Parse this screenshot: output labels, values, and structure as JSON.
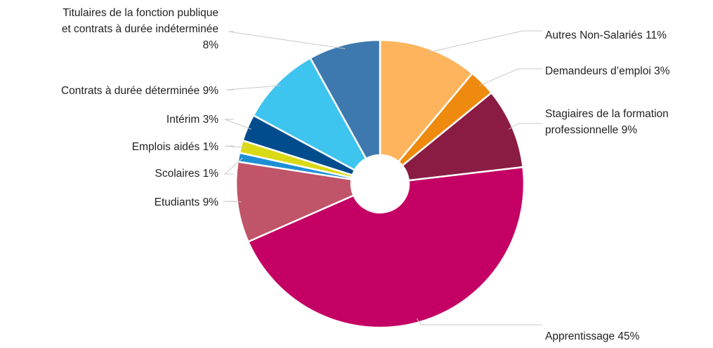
{
  "chart_data": {
    "type": "pie",
    "donut": true,
    "title": "",
    "slices": [
      {
        "label_lines": [
          "Autres Non-Salariés 11%"
        ],
        "value": 11,
        "color": "#FDB45C"
      },
      {
        "label_lines": [
          "Demandeurs d’emploi 3%"
        ],
        "value": 3,
        "color": "#EE8A0E"
      },
      {
        "label_lines": [
          "Stagiaires de la formation",
          "professionnelle 9%"
        ],
        "value": 9,
        "color": "#8A1C44"
      },
      {
        "label_lines": [
          "Apprentissage 45%"
        ],
        "value": 45,
        "color": "#C40064"
      },
      {
        "label_lines": [
          "Etudiants 9%"
        ],
        "value": 9,
        "color": "#C05468"
      },
      {
        "label_lines": [
          "Scolaires 1%"
        ],
        "value": 1,
        "color": "#1E8FD5"
      },
      {
        "label_lines": [
          "Emplois aidés 1%"
        ],
        "value": 1.4,
        "color": "#D9D916"
      },
      {
        "label_lines": [
          "Intérim 3%"
        ],
        "value": 3,
        "color": "#004C8C"
      },
      {
        "label_lines": [
          "Contrats à durée déterminée 9%"
        ],
        "value": 9,
        "color": "#3DC4EF"
      },
      {
        "label_lines": [
          "Titulaires de la fonction publique",
          "et contrats à durée indéterminée",
          "8%"
        ],
        "value": 8,
        "color": "#3D79AE"
      }
    ]
  }
}
